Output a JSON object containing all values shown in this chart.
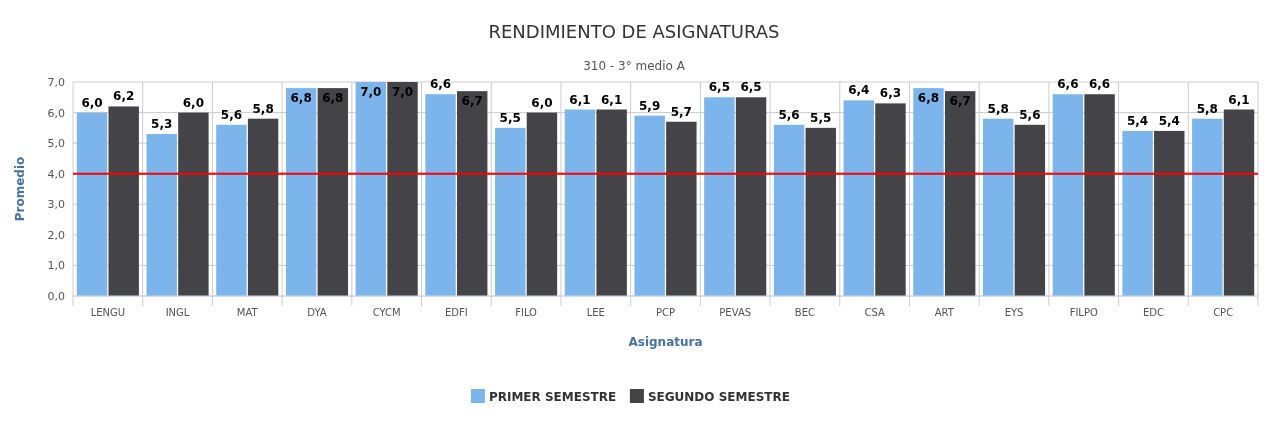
{
  "chart_data": {
    "type": "bar",
    "title": "RENDIMIENTO DE ASIGNATURAS",
    "subtitle": "310 - 3° medio A",
    "xlabel": "Asignatura",
    "ylabel": "Promedio",
    "categories": [
      "LENGU",
      "INGL",
      "MAT",
      "DYA",
      "CYCM",
      "EDFI",
      "FILO",
      "LEE",
      "PCP",
      "PEVAS",
      "BEC",
      "CSA",
      "ART",
      "EYS",
      "FILPO",
      "EDC",
      "CPC"
    ],
    "series": [
      {
        "name": "PRIMER SEMESTRE",
        "color": "#7cb5ec",
        "values": [
          6.0,
          5.3,
          5.6,
          6.8,
          7.0,
          6.6,
          5.5,
          6.1,
          5.9,
          6.5,
          5.6,
          6.4,
          6.8,
          5.8,
          6.6,
          5.4,
          5.8
        ],
        "value_labels": [
          "6,0",
          "5,3",
          "5,6",
          "6,8",
          "7,0",
          "6,6",
          "5,5",
          "6,1",
          "5,9",
          "6,5",
          "5,6",
          "6,4",
          "6,8",
          "5,8",
          "6,6",
          "5,4",
          "5,8"
        ]
      },
      {
        "name": "SEGUNDO SEMESTRE",
        "color": "#434348",
        "values": [
          6.2,
          6.0,
          5.8,
          6.8,
          7.0,
          6.7,
          6.0,
          6.1,
          5.7,
          6.5,
          5.5,
          6.3,
          6.7,
          5.6,
          6.6,
          5.4,
          6.1
        ],
        "value_labels": [
          "6,2",
          "6,0",
          "5,8",
          "6,8",
          "7,0",
          "6,7",
          "6,0",
          "6,1",
          "5,7",
          "6,5",
          "5,5",
          "6,3",
          "6,7",
          "5,6",
          "6,6",
          "5,4",
          "6,1"
        ]
      }
    ],
    "ylim": [
      0,
      7
    ],
    "yticks": [
      {
        "value": 0,
        "label": "0,0"
      },
      {
        "value": 1,
        "label": "1,0"
      },
      {
        "value": 2,
        "label": "2,0"
      },
      {
        "value": 3,
        "label": "3,0"
      },
      {
        "value": 4,
        "label": "4,0"
      },
      {
        "value": 5,
        "label": "5,0"
      },
      {
        "value": 6,
        "label": "6,0"
      },
      {
        "value": 7,
        "label": "7,0"
      }
    ],
    "grid": true,
    "legend": "bottom",
    "ref_lines": [
      {
        "axis": "y",
        "value": 4,
        "color": "#ff0000"
      }
    ]
  }
}
